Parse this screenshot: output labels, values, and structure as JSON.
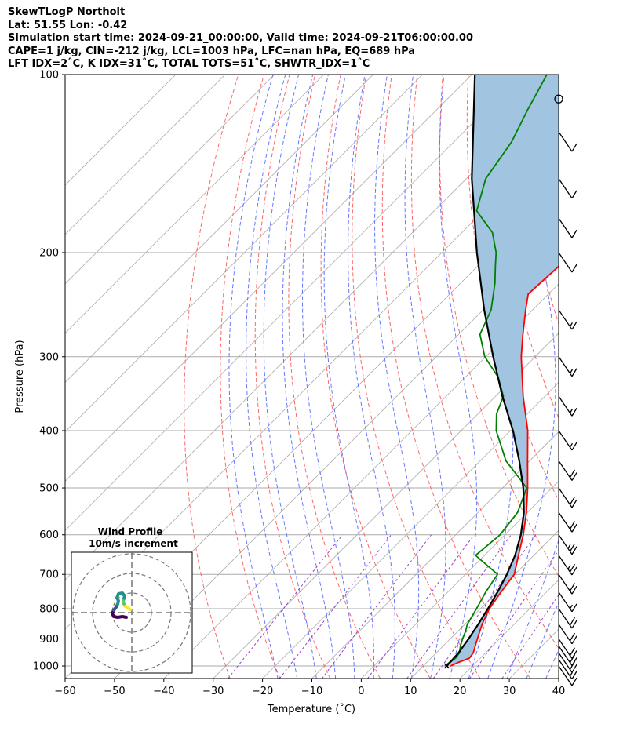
{
  "header": {
    "line1": "SkewTLogP Northolt",
    "line2": "Lat: 51.55   Lon: -0.42",
    "line3": "Simulation start time: 2024-09-21_00:00:00, Valid time: 2024-09-21T06:00:00.00",
    "line4": "CAPE=1 j/kg, CIN=-212 j/kg, LCL=1003 hPa, LFC=nan hPa, EQ=689 hPa",
    "line5": "LFT IDX=2˚C, K IDX=31˚C, TOTAL TOTS=51˚C, SHWTR_IDX=1˚C"
  },
  "axes": {
    "xlabel": "Temperature (˚C)",
    "ylabel": "Pressure (hPa)"
  },
  "inset": {
    "title_line1": "Wind Profile",
    "title_line2": "10m/s increment"
  },
  "colors": {
    "temperature": "#ff0000",
    "dewpoint": "#008000",
    "parcel": "#000000",
    "cape_fill": "#a1c4e0",
    "dry_adiabat": "#ff6666",
    "moist_adiabat": "#6677ff",
    "mixing_ratio": "#9944cc",
    "isotherm": "#aaaaaa"
  },
  "chart_data": {
    "type": "line",
    "title": "SkewTLogP Northolt",
    "xlabel": "Temperature (˚C)",
    "ylabel": "Pressure (hPa)",
    "xlim": [
      -60,
      40
    ],
    "ylim": [
      1050,
      100
    ],
    "y_scale": "log",
    "x_ticks": [
      "−60",
      "−50",
      "−40",
      "−30",
      "−20",
      "−10",
      "0",
      "10",
      "20",
      "30",
      "40"
    ],
    "x_tick_values": [
      -60,
      -50,
      -40,
      -30,
      -20,
      -10,
      0,
      10,
      20,
      30,
      40
    ],
    "y_ticks": [
      "1000",
      "900",
      "800",
      "700",
      "600",
      "500",
      "400",
      "300",
      "200",
      "100"
    ],
    "y_tick_values": [
      1000,
      900,
      800,
      700,
      600,
      500,
      400,
      300,
      200,
      100
    ],
    "grid": true,
    "series": [
      {
        "name": "Temperature",
        "p": [
          1000,
          985,
          970,
          950,
          925,
          900,
          875,
          850,
          800,
          750,
          700,
          650,
          600,
          550,
          500,
          450,
          400,
          350,
          300,
          275,
          250,
          235,
          210,
          190,
          170,
          150,
          130,
          115,
          100
        ],
        "t": [
          15.5,
          16.5,
          17.8,
          17.5,
          16.5,
          15.5,
          14.5,
          13.5,
          11.8,
          10.8,
          9.9,
          6.9,
          3.7,
          -0.2,
          -4.9,
          -10.4,
          -16.5,
          -24.4,
          -32.8,
          -37.0,
          -41.4,
          -44.1,
          -43.5,
          -44.9,
          -46.5,
          -49.6,
          -50.9,
          -54.2,
          -57.5
        ]
      },
      {
        "name": "Dewpoint",
        "p": [
          1000,
          985,
          970,
          950,
          925,
          900,
          875,
          850,
          800,
          750,
          700,
          650,
          600,
          550,
          500,
          450,
          400,
          375,
          350,
          325,
          300,
          275,
          250,
          225,
          210,
          200,
          185,
          170,
          150,
          130,
          115,
          100
        ],
        "t": [
          14.4,
          14.6,
          15.0,
          14.7,
          13.5,
          12.5,
          11.6,
          10.5,
          9.2,
          7.7,
          6.5,
          -1.8,
          -1.0,
          -2.0,
          -5.1,
          -14.8,
          -22.9,
          -26.2,
          -28.4,
          -33.3,
          -40.2,
          -45.7,
          -48.4,
          -53.1,
          -56.6,
          -59.0,
          -63.8,
          -71.4,
          -76.1,
          -78.3,
          -81.5,
          -84.8
        ]
      },
      {
        "name": "Parcel",
        "p": [
          1000,
          950,
          900,
          850,
          800,
          750,
          700,
          650,
          600,
          550,
          500,
          450,
          400,
          350,
          300,
          250,
          200,
          150,
          100
        ],
        "t": [
          14.8,
          14.5,
          13.7,
          12.7,
          11.5,
          10.1,
          8.4,
          6.2,
          3.2,
          -0.7,
          -5.8,
          -12.1,
          -19.5,
          -28.6,
          -38.5,
          -49.8,
          -62.9,
          -78.9,
          -99.4
        ]
      }
    ],
    "cape_cin_shading": "between Temperature and Parcel",
    "wind_barbs": [
      {
        "p": 1000,
        "speed_kt": 10
      },
      {
        "p": 975,
        "speed_kt": 15
      },
      {
        "p": 950,
        "speed_kt": 20
      },
      {
        "p": 925,
        "speed_kt": 20
      },
      {
        "p": 900,
        "speed_kt": 20
      },
      {
        "p": 850,
        "speed_kt": 20
      },
      {
        "p": 800,
        "speed_kt": 20
      },
      {
        "p": 750,
        "speed_kt": 15
      },
      {
        "p": 700,
        "speed_kt": 20
      },
      {
        "p": 650,
        "speed_kt": 25
      },
      {
        "p": 600,
        "speed_kt": 25
      },
      {
        "p": 550,
        "speed_kt": 20
      },
      {
        "p": 500,
        "speed_kt": 20
      },
      {
        "p": 450,
        "speed_kt": 20
      },
      {
        "p": 400,
        "speed_kt": 15
      },
      {
        "p": 350,
        "speed_kt": 15
      },
      {
        "p": 300,
        "speed_kt": 15
      },
      {
        "p": 250,
        "speed_kt": 15
      },
      {
        "p": 200,
        "speed_kt": 10
      },
      {
        "p": 175,
        "speed_kt": 10
      },
      {
        "p": 150,
        "speed_kt": 10
      },
      {
        "p": 125,
        "speed_kt": 10
      },
      {
        "p": 110,
        "speed_kt": 0
      }
    ],
    "wind_profile_inset": {
      "title": "Wind Profile",
      "subtitle": "10m/s increment",
      "rings": 3,
      "colormap": "viridis"
    }
  }
}
